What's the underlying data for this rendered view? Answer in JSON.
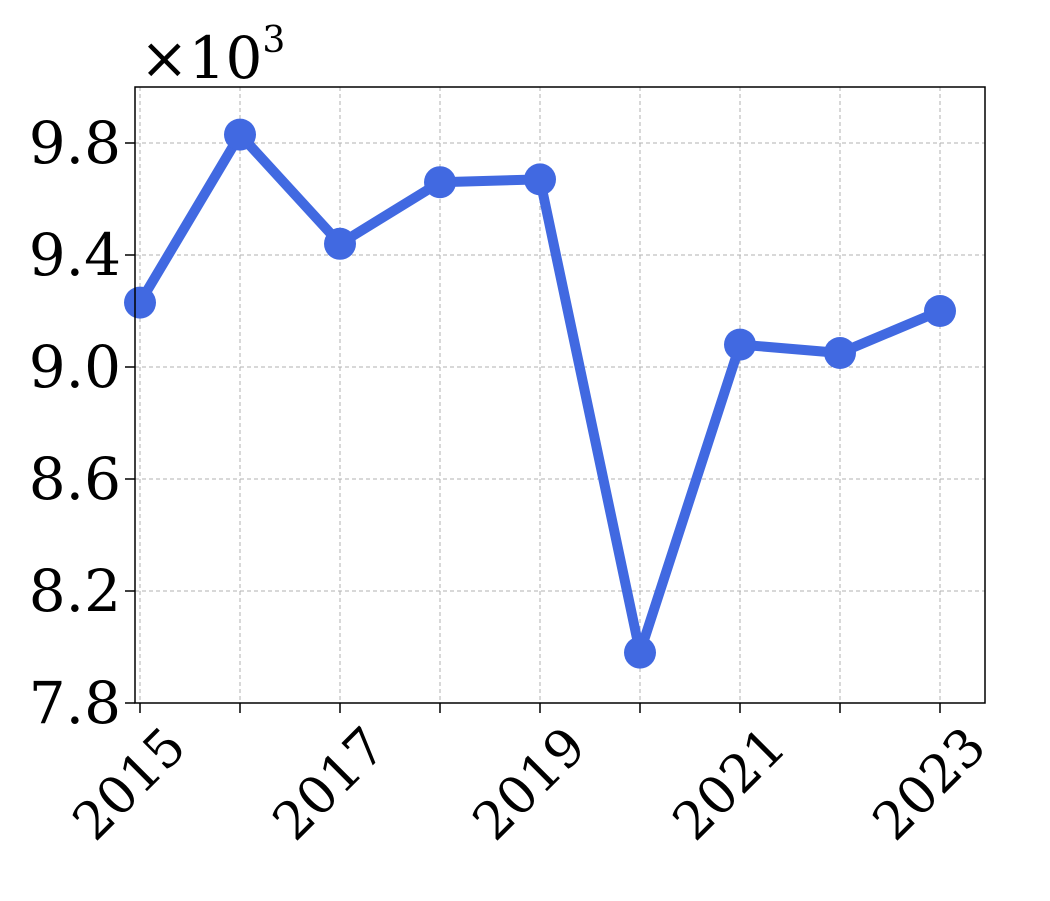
{
  "chart_data": {
    "type": "line",
    "x": [
      2015,
      2016,
      2017,
      2018,
      2019,
      2020,
      2021,
      2022,
      2023
    ],
    "series": [
      {
        "values": [
          9.23,
          9.83,
          9.44,
          9.66,
          9.67,
          7.98,
          9.08,
          9.05,
          9.2
        ],
        "color": "#4169e1"
      }
    ],
    "x_tick_labels": [
      "2015",
      "2017",
      "2019",
      "2021",
      "2023"
    ],
    "x_tick_values": [
      2015,
      2017,
      2019,
      2021,
      2023
    ],
    "y_tick_labels": [
      "7.8",
      "8.2",
      "8.6",
      "9.0",
      "9.4",
      "9.8"
    ],
    "y_tick_values": [
      7.8,
      8.2,
      8.6,
      9.0,
      9.4,
      9.8
    ],
    "xlim": [
      2014.95,
      2023.45
    ],
    "ylim": [
      7.8,
      10.0
    ],
    "scale_label": {
      "base": "×10",
      "exponent": "3"
    },
    "grid": true,
    "title": "",
    "xlabel": "",
    "ylabel": ""
  }
}
